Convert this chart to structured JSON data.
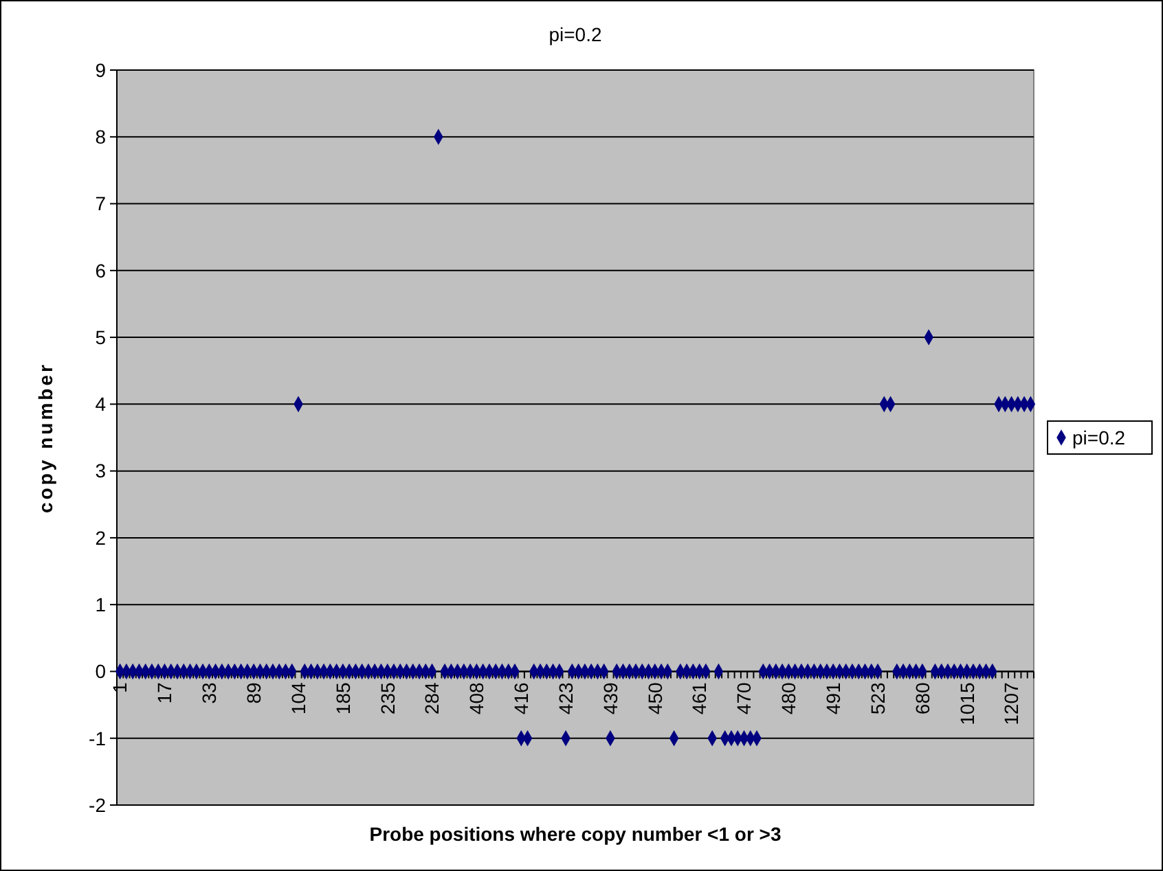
{
  "chart_data": {
    "type": "scatter",
    "title": "pi=0.2",
    "xlabel": "Probe positions where copy number <1 or >3",
    "ylabel": "copy number",
    "categories": [
      "1",
      null,
      null,
      null,
      null,
      null,
      null,
      "17",
      null,
      null,
      null,
      null,
      null,
      null,
      "33",
      null,
      null,
      null,
      null,
      null,
      null,
      "89",
      null,
      null,
      null,
      null,
      null,
      null,
      "104",
      null,
      null,
      null,
      null,
      null,
      null,
      "185",
      null,
      null,
      null,
      null,
      null,
      null,
      "235",
      null,
      null,
      null,
      null,
      null,
      null,
      "284",
      null,
      null,
      null,
      null,
      null,
      null,
      "408",
      null,
      null,
      null,
      null,
      null,
      null,
      "416",
      null,
      null,
      null,
      null,
      null,
      null,
      "423",
      null,
      null,
      null,
      null,
      null,
      null,
      "439",
      null,
      null,
      null,
      null,
      null,
      null,
      "450",
      null,
      null,
      null,
      null,
      null,
      null,
      "461",
      null,
      null,
      null,
      null,
      null,
      null,
      "470",
      null,
      null,
      null,
      null,
      null,
      null,
      "480",
      null,
      null,
      null,
      null,
      null,
      null,
      "491",
      null,
      null,
      null,
      null,
      null,
      null,
      "523",
      null,
      null,
      null,
      null,
      null,
      null,
      "680",
      null,
      null,
      null,
      null,
      null,
      null,
      "1015",
      null,
      null,
      null,
      null,
      null,
      null,
      "1207",
      null,
      null,
      null
    ],
    "series": [
      {
        "name": "pi=0.2",
        "color": "#000080",
        "values": [
          0,
          0,
          0,
          0,
          0,
          0,
          0,
          0,
          0,
          0,
          0,
          0,
          0,
          0,
          0,
          0,
          0,
          0,
          0,
          0,
          0,
          0,
          0,
          0,
          0,
          0,
          0,
          0,
          4,
          0,
          0,
          0,
          0,
          0,
          0,
          0,
          0,
          0,
          0,
          0,
          0,
          0,
          0,
          0,
          0,
          0,
          0,
          0,
          0,
          0,
          8,
          0,
          0,
          0,
          0,
          0,
          0,
          0,
          0,
          0,
          0,
          0,
          0,
          -1,
          -1,
          0,
          0,
          0,
          0,
          0,
          -1,
          0,
          0,
          0,
          0,
          0,
          0,
          -1,
          0,
          0,
          0,
          0,
          0,
          0,
          0,
          0,
          0,
          -1,
          0,
          0,
          0,
          0,
          0,
          -1,
          0,
          -1,
          -1,
          -1,
          -1,
          -1,
          -1,
          0,
          0,
          0,
          0,
          0,
          0,
          0,
          0,
          0,
          0,
          0,
          0,
          0,
          0,
          0,
          0,
          0,
          0,
          0,
          4,
          4,
          0,
          0,
          0,
          0,
          0,
          5,
          0,
          0,
          0,
          0,
          0,
          0,
          0,
          0,
          0,
          0,
          4,
          4,
          4,
          4,
          4,
          4
        ]
      }
    ],
    "ylim": [
      -2,
      9
    ],
    "yticks": [
      -2,
      -1,
      0,
      1,
      2,
      3,
      4,
      5,
      6,
      7,
      8,
      9
    ],
    "grid": "y",
    "legend": "right",
    "marker": "diamond"
  }
}
